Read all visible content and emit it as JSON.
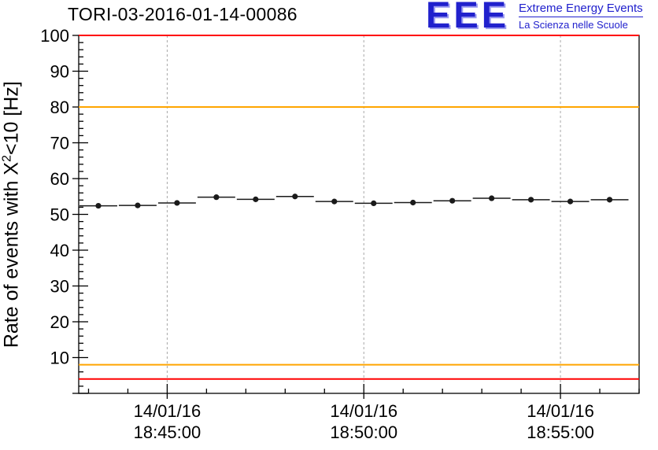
{
  "title": "TORI-03-2016-01-14-00086",
  "logo": {
    "acronym": "EEE",
    "line1": "Extreme Energy Events",
    "line2": "La Scienza nelle Scuole",
    "color": "#2121cd"
  },
  "y_axis": {
    "label_prefix": "Rate of events with X",
    "label_sup": "2",
    "label_suffix": "<10 [Hz]"
  },
  "chart_data": {
    "type": "scatter",
    "title": "TORI-03-2016-01-14-00086",
    "ylabel": "Rate of events with X^2<10 [Hz]",
    "xlabel": "",
    "ylim": [
      0,
      100
    ],
    "y_labeled_ticks": [
      10,
      20,
      30,
      40,
      50,
      60,
      70,
      80,
      90,
      100
    ],
    "y_minor_step": 2,
    "xlim_minutes": [
      42.75,
      57.0
    ],
    "x_minor_step": 1,
    "grid": "vertical-dashed",
    "x_ticks": [
      {
        "minute": 45,
        "date": "14/01/16",
        "time": "18:45:00"
      },
      {
        "minute": 50,
        "date": "14/01/16",
        "time": "18:50:00"
      },
      {
        "minute": 55,
        "date": "14/01/16",
        "time": "18:55:00"
      }
    ],
    "thresholds": [
      {
        "name": "upper-alarm",
        "value": 100,
        "color": "#ff0000"
      },
      {
        "name": "upper-warning",
        "value": 80,
        "color": "#ffa500"
      },
      {
        "name": "lower-warning",
        "value": 8,
        "color": "#ffa500"
      },
      {
        "name": "lower-alarm",
        "value": 4,
        "color": "#ff0000"
      }
    ],
    "series": [
      {
        "name": "event-rate",
        "color": "#1a1a1a",
        "marker": "circle",
        "x_minutes": [
          43.25,
          44.25,
          45.25,
          46.25,
          47.25,
          48.25,
          49.25,
          50.25,
          51.25,
          52.25,
          53.25,
          54.25,
          55.25,
          56.25
        ],
        "y": [
          52.4,
          52.5,
          53.2,
          54.8,
          54.2,
          55.0,
          53.6,
          53.1,
          53.3,
          53.8,
          54.5,
          54.1,
          53.6,
          54.1
        ],
        "x_halfwidth": 0.48,
        "y_err": 0.7
      }
    ]
  }
}
